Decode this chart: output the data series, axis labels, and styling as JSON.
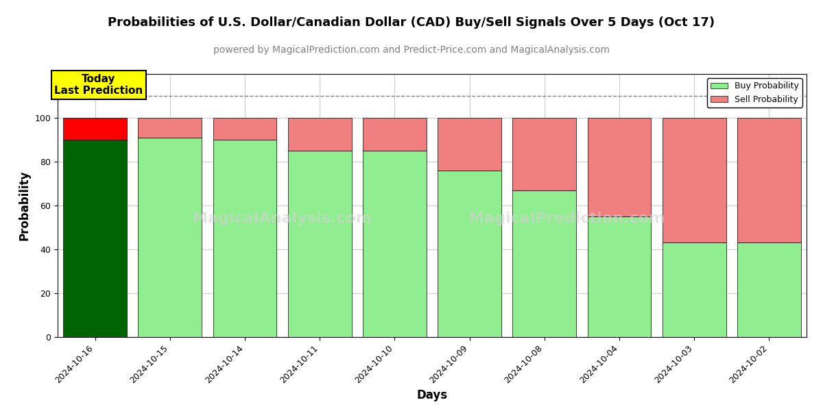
{
  "title": "Probabilities of U.S. Dollar/Canadian Dollar (CAD) Buy/Sell Signals Over 5 Days (Oct 17)",
  "subtitle": "powered by MagicalPrediction.com and Predict-Price.com and MagicalAnalysis.com",
  "xlabel": "Days",
  "ylabel": "Probability",
  "categories": [
    "2024-10-16",
    "2024-10-15",
    "2024-10-14",
    "2024-10-11",
    "2024-10-10",
    "2024-10-09",
    "2024-10-08",
    "2024-10-04",
    "2024-10-03",
    "2024-10-02"
  ],
  "buy_values": [
    90,
    91,
    90,
    85,
    85,
    76,
    67,
    55,
    43,
    43
  ],
  "sell_values": [
    10,
    9,
    10,
    15,
    15,
    24,
    33,
    45,
    57,
    57
  ],
  "today_index": 0,
  "today_buy_color": "#006400",
  "today_sell_color": "#ff0000",
  "buy_color": "#90EE90",
  "sell_color": "#F08080",
  "ylim": [
    0,
    120
  ],
  "yticks": [
    0,
    20,
    40,
    60,
    80,
    100
  ],
  "dashed_line_y": 110,
  "legend_buy": "Buy Probability",
  "legend_sell": "Sell Probability",
  "today_label_line1": "Today",
  "today_label_line2": "Last Prediction",
  "background_color": "#ffffff",
  "grid_color": "#cccccc",
  "title_fontsize": 13,
  "subtitle_fontsize": 10,
  "axis_label_fontsize": 12,
  "tick_fontsize": 9,
  "bar_width": 0.85
}
